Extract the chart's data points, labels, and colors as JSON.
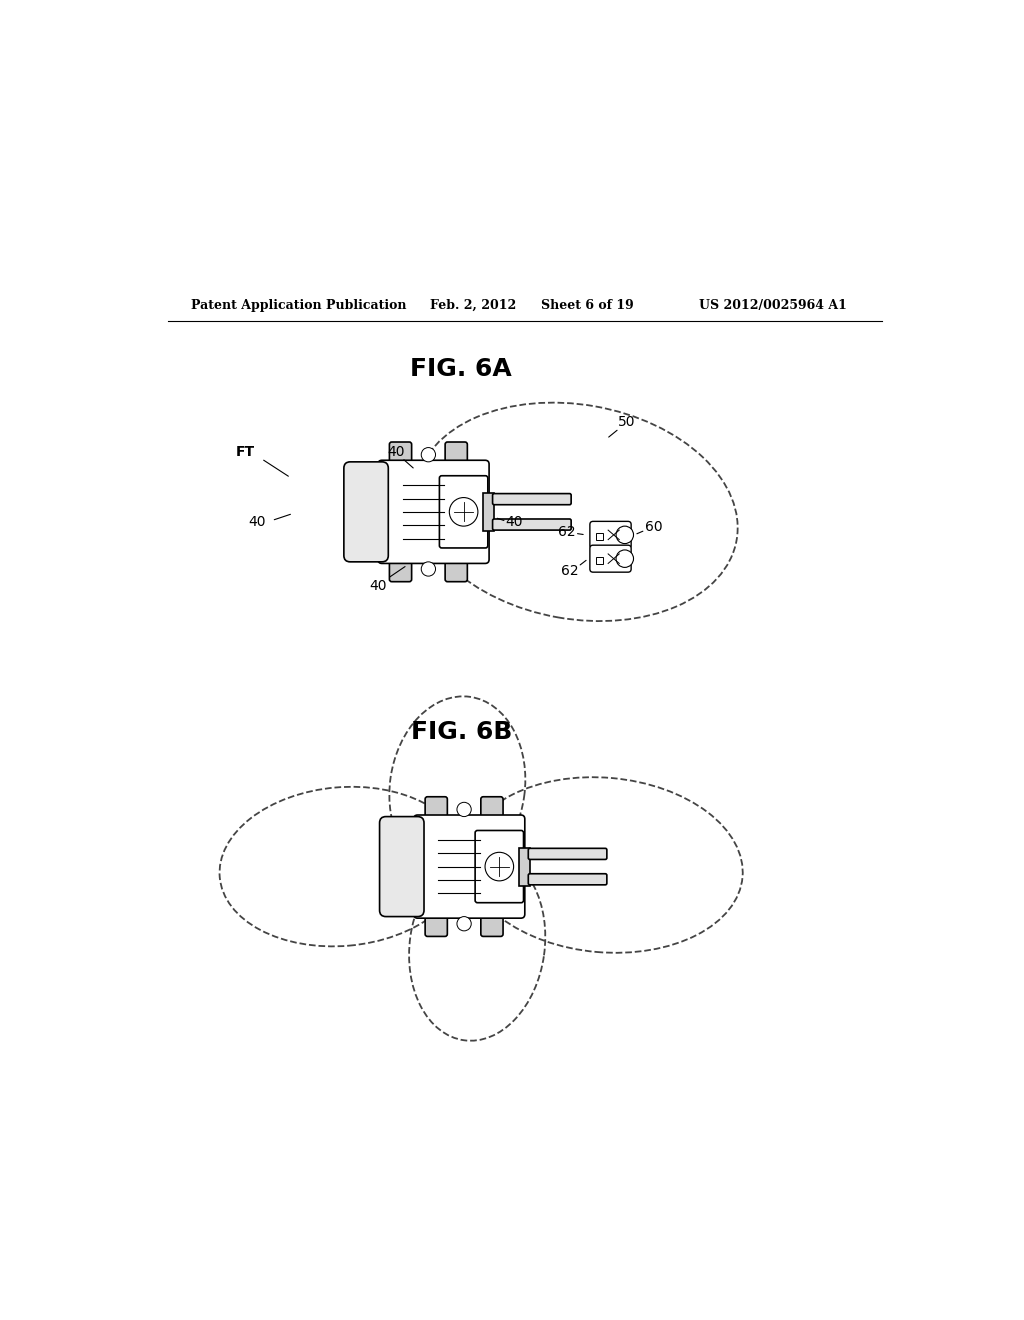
{
  "bg_color": "#ffffff",
  "line_color": "#000000",
  "header_text": "Patent Application Publication",
  "header_date": "Feb. 2, 2012",
  "header_sheet": "Sheet 6 of 19",
  "header_patent": "US 2012/0025964 A1",
  "fig6a_label": "FIG. 6A",
  "fig6b_label": "FIG. 6B"
}
